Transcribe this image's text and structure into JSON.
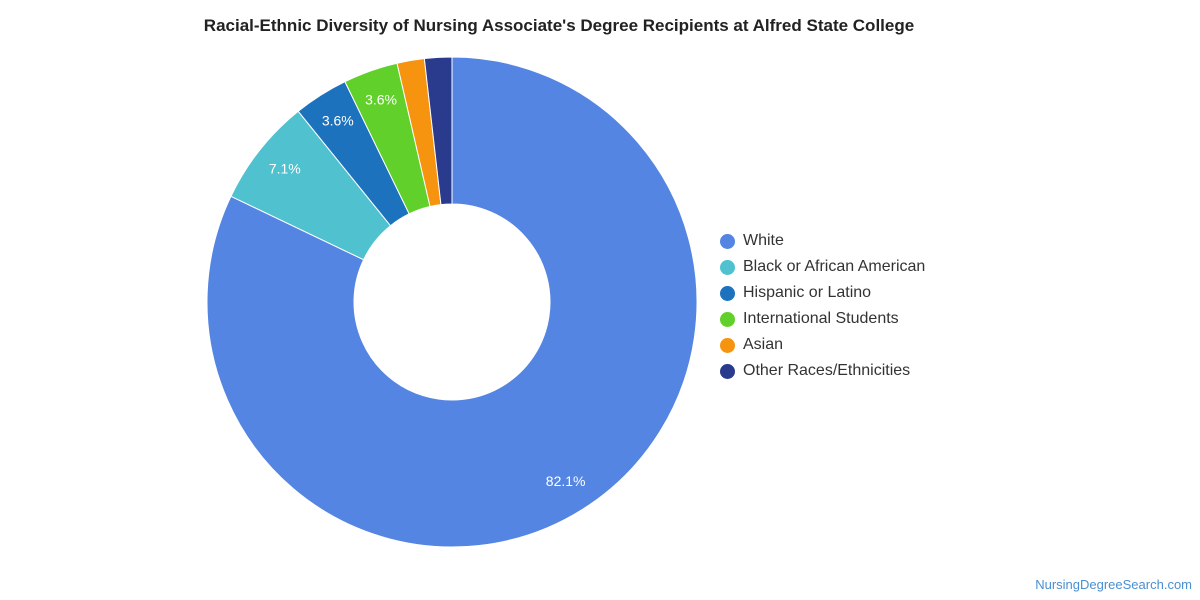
{
  "chart_data": {
    "type": "pie",
    "title": "Racial-Ethnic Diversity of Nursing Associate's Degree Recipients at Alfred State College",
    "slices": [
      {
        "label": "White",
        "value": 82.1,
        "display": "82.1%",
        "color": "#5485e2"
      },
      {
        "label": "Black or African American",
        "value": 7.1,
        "display": "7.1%",
        "color": "#50c1cf"
      },
      {
        "label": "Hispanic or Latino",
        "value": 3.6,
        "display": "3.6%",
        "color": "#1d72be"
      },
      {
        "label": "International Students",
        "value": 3.6,
        "display": "3.6%",
        "color": "#62d02a"
      },
      {
        "label": "Asian",
        "value": 1.8,
        "display": "",
        "color": "#f7940f"
      },
      {
        "label": "Other Races/Ethnicities",
        "value": 1.8,
        "display": "",
        "color": "#2a3a8c"
      }
    ],
    "legend_position": "right"
  },
  "footer": {
    "source": "NursingDegreeSearch.com"
  }
}
